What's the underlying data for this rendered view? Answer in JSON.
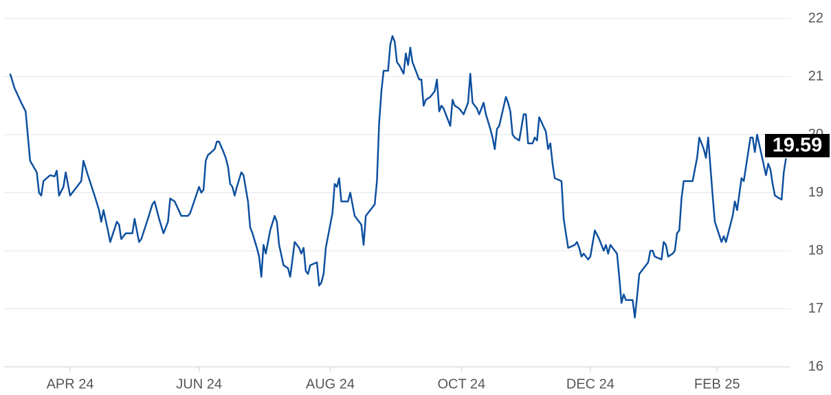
{
  "chart_data": {
    "type": "line",
    "x": [
      -27,
      -25,
      -22,
      -20,
      -18,
      -15,
      -14,
      -13,
      -12,
      -9,
      -7,
      -6,
      -5,
      -3,
      -2,
      0,
      2,
      5,
      6,
      8,
      11,
      13,
      14,
      15,
      17,
      18,
      21,
      22,
      23,
      25,
      28,
      29,
      31,
      32,
      35,
      37,
      38,
      40,
      42,
      44,
      45,
      47,
      50,
      53,
      54,
      58,
      59,
      60,
      61,
      62,
      63,
      65,
      66,
      67,
      69,
      70,
      71,
      72,
      73,
      74,
      75,
      77,
      78,
      80,
      81,
      82,
      84,
      85,
      86,
      87,
      88,
      90,
      92,
      93,
      94,
      96,
      98,
      99,
      100,
      101,
      103,
      104,
      105,
      106,
      107,
      108,
      111,
      112,
      113,
      114,
      115,
      118,
      119,
      120,
      121,
      122,
      125,
      126,
      127,
      128,
      131,
      132,
      133,
      137,
      138,
      139,
      140,
      141,
      143,
      144,
      145,
      146,
      147,
      148,
      150,
      151,
      152,
      153,
      154,
      157,
      158,
      159,
      160,
      162,
      164,
      165,
      166,
      167,
      168,
      171,
      172,
      173,
      175,
      177,
      179,
      180,
      181,
      183,
      184,
      186,
      187,
      189,
      190,
      191,
      192,
      193,
      196,
      197,
      198,
      199,
      200,
      202,
      204,
      205,
      206,
      208,
      209,
      210,
      211,
      214,
      215,
      216,
      217,
      218,
      221,
      222,
      223,
      224,
      227,
      228,
      229,
      230,
      231,
      233,
      234,
      236,
      238,
      240,
      241,
      242,
      243,
      246,
      247,
      248,
      249,
      250,
      253,
      254,
      255,
      256,
      258,
      260,
      261,
      262,
      263,
      266,
      267,
      268,
      269,
      271,
      272,
      273,
      274,
      275,
      276,
      280,
      281,
      282,
      283,
      285,
      286,
      287,
      289,
      290,
      293,
      294,
      295,
      298,
      299,
      300,
      302,
      303,
      306,
      307,
      308,
      309,
      311,
      313,
      314,
      315,
      316,
      317,
      320,
      321,
      322
    ],
    "values": [
      21.05,
      20.8,
      20.55,
      20.4,
      19.55,
      19.35,
      19.0,
      18.95,
      19.2,
      19.3,
      19.28,
      19.38,
      18.95,
      19.1,
      19.35,
      18.95,
      19.05,
      19.2,
      19.55,
      19.3,
      18.95,
      18.7,
      18.5,
      18.7,
      18.35,
      18.15,
      18.5,
      18.45,
      18.2,
      18.3,
      18.3,
      18.55,
      18.15,
      18.2,
      18.55,
      18.8,
      18.85,
      18.55,
      18.3,
      18.5,
      18.9,
      18.85,
      18.6,
      18.6,
      18.65,
      19.1,
      19.0,
      19.05,
      19.55,
      19.65,
      19.68,
      19.75,
      19.88,
      19.88,
      19.7,
      19.6,
      19.45,
      19.15,
      19.1,
      18.95,
      19.1,
      19.35,
      19.3,
      18.85,
      18.4,
      18.3,
      18.05,
      17.9,
      17.55,
      18.1,
      17.95,
      18.35,
      18.6,
      18.5,
      18.1,
      17.75,
      17.7,
      17.55,
      17.85,
      18.15,
      18.05,
      17.95,
      18.05,
      17.65,
      17.6,
      17.75,
      17.8,
      17.4,
      17.45,
      17.6,
      18.05,
      18.65,
      19.15,
      19.1,
      19.25,
      18.85,
      18.85,
      19.0,
      18.8,
      18.6,
      18.45,
      18.1,
      18.6,
      18.8,
      19.2,
      20.2,
      20.75,
      21.1,
      21.1,
      21.55,
      21.7,
      21.6,
      21.25,
      21.2,
      21.05,
      21.4,
      21.2,
      21.5,
      21.25,
      20.95,
      20.95,
      20.5,
      20.6,
      20.65,
      20.75,
      20.95,
      20.4,
      20.5,
      20.45,
      20.15,
      20.6,
      20.5,
      20.45,
      20.35,
      20.55,
      21.05,
      20.55,
      20.45,
      20.35,
      20.55,
      20.35,
      20.1,
      19.95,
      19.75,
      20.1,
      20.15,
      20.65,
      20.55,
      20.4,
      20.0,
      19.95,
      19.9,
      20.35,
      20.35,
      19.85,
      19.85,
      19.95,
      19.9,
      20.3,
      20.05,
      19.75,
      19.85,
      19.5,
      19.25,
      19.2,
      18.55,
      18.3,
      18.05,
      18.1,
      18.15,
      18.05,
      17.9,
      17.95,
      17.85,
      17.9,
      18.35,
      18.2,
      18.0,
      18.1,
      17.95,
      18.1,
      17.95,
      17.55,
      17.1,
      17.25,
      17.15,
      17.15,
      16.85,
      17.2,
      17.6,
      17.7,
      17.8,
      18.0,
      18.0,
      17.9,
      17.85,
      18.15,
      18.1,
      17.9,
      17.95,
      18.0,
      18.3,
      18.35,
      18.9,
      19.2,
      19.2,
      19.4,
      19.6,
      19.95,
      19.75,
      19.6,
      19.95,
      18.95,
      18.5,
      18.15,
      18.25,
      18.15,
      18.6,
      18.85,
      18.7,
      19.25,
      19.2,
      19.95,
      19.95,
      19.7,
      20.0,
      19.65,
      19.3,
      19.5,
      19.4,
      19.15,
      18.95,
      18.88,
      19.35,
      19.59
    ],
    "color": "#0d4f9e",
    "last_value": 19.59,
    "xlim": [
      -30,
      324
    ],
    "xticks": [
      {
        "value": 0,
        "label": "APR 24"
      },
      {
        "value": 58,
        "label": "JUN 24"
      },
      {
        "value": 117,
        "label": "AUG 24"
      },
      {
        "value": 176,
        "label": "OCT 24"
      },
      {
        "value": 234,
        "label": "DEC 24"
      },
      {
        "value": 291,
        "label": "FEB 25"
      }
    ],
    "ylim": [
      16,
      22
    ],
    "yticks": [
      16,
      17,
      18,
      19,
      20,
      21,
      22
    ],
    "grid": true
  }
}
